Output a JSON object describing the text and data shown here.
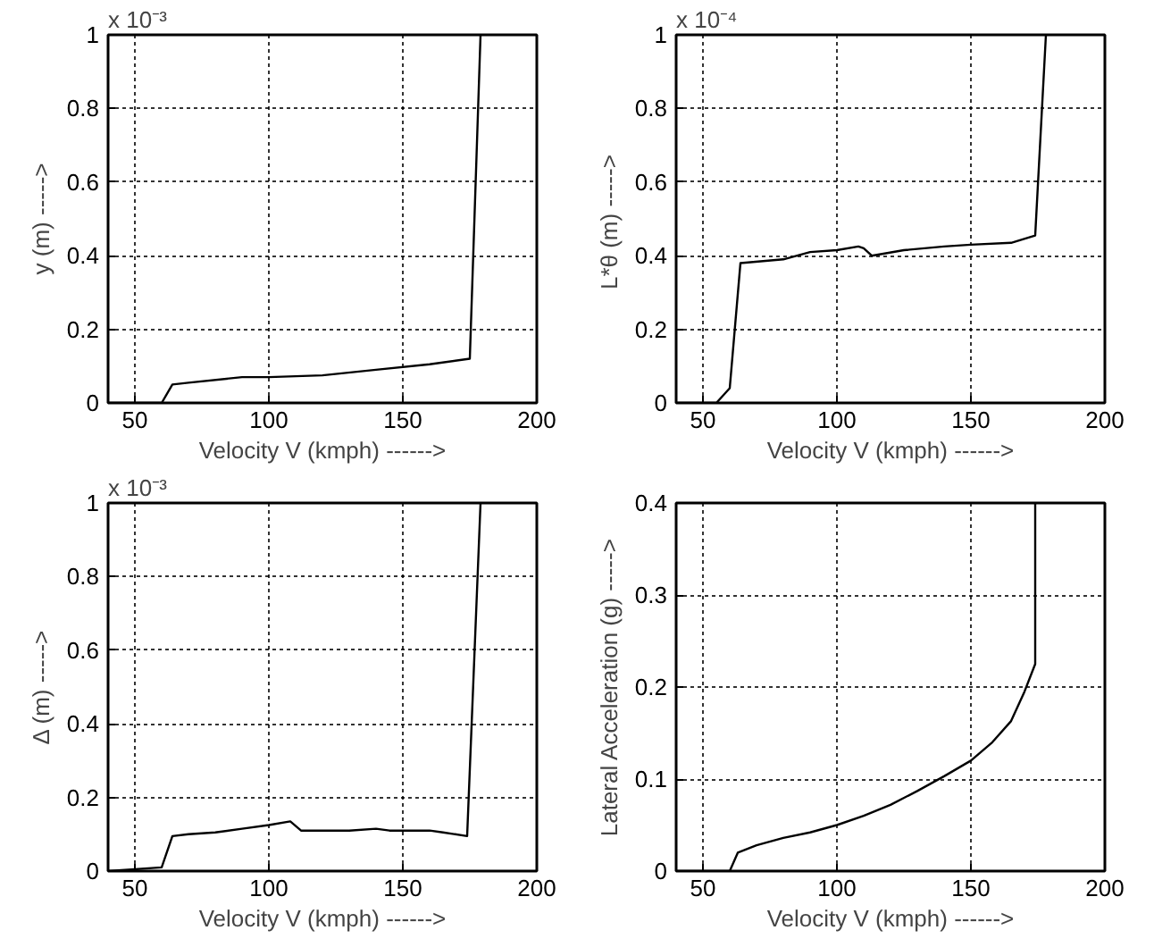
{
  "chart_data": [
    {
      "type": "line",
      "xlabel": "Velocity V (kmph) ------>",
      "ylabel": "y (m) ----->",
      "annotations": [
        "x 10⁻³"
      ],
      "xlim": [
        40,
        200
      ],
      "ylim": [
        0,
        1
      ],
      "xticks": [
        50,
        100,
        150,
        200
      ],
      "yticks": [
        0,
        0.2,
        0.4,
        0.6,
        0.8,
        1
      ],
      "grid": true,
      "series": [
        {
          "color": "#000000",
          "x": [
            40,
            60,
            64,
            70,
            90,
            100,
            120,
            140,
            160,
            175,
            179
          ],
          "values": [
            0,
            0,
            0.05,
            0.055,
            0.07,
            0.07,
            0.075,
            0.09,
            0.105,
            0.12,
            1
          ]
        }
      ]
    },
    {
      "type": "line",
      "xlabel": "Velocity V (kmph) ------>",
      "ylabel": "L*θ  (m) ----->",
      "annotations": [
        "x 10⁻⁴"
      ],
      "xlim": [
        40,
        200
      ],
      "ylim": [
        0,
        1
      ],
      "xticks": [
        50,
        100,
        150,
        200
      ],
      "yticks": [
        0,
        0.2,
        0.4,
        0.6,
        0.8,
        1
      ],
      "grid": true,
      "series": [
        {
          "color": "#000000",
          "x": [
            40,
            55,
            60,
            64,
            80,
            90,
            100,
            108,
            110,
            113,
            125,
            140,
            150,
            165,
            174,
            178
          ],
          "values": [
            0,
            0,
            0.04,
            0.38,
            0.39,
            0.41,
            0.415,
            0.425,
            0.42,
            0.4,
            0.415,
            0.425,
            0.43,
            0.435,
            0.455,
            1
          ]
        }
      ]
    },
    {
      "type": "line",
      "xlabel": "Velocity V (kmph) ------>",
      "ylabel": "Δ (m) ----->",
      "annotations": [
        "x 10⁻³"
      ],
      "xlim": [
        40,
        200
      ],
      "ylim": [
        0,
        1
      ],
      "xticks": [
        50,
        100,
        150,
        200
      ],
      "yticks": [
        0,
        0.2,
        0.4,
        0.6,
        0.8,
        1
      ],
      "grid": true,
      "series": [
        {
          "color": "#000000",
          "x": [
            40,
            60,
            64,
            70,
            80,
            90,
            100,
            108,
            112,
            130,
            140,
            145,
            160,
            165,
            174,
            179
          ],
          "values": [
            0,
            0.01,
            0.095,
            0.1,
            0.105,
            0.115,
            0.125,
            0.135,
            0.11,
            0.11,
            0.115,
            0.11,
            0.11,
            0.105,
            0.095,
            1
          ]
        }
      ]
    },
    {
      "type": "line",
      "xlabel": "Velocity V (kmph) ------>",
      "ylabel": "Lateral Acceleration (g) ----->",
      "xlim": [
        40,
        200
      ],
      "ylim": [
        0,
        0.4
      ],
      "xticks": [
        50,
        100,
        150,
        200
      ],
      "yticks": [
        0,
        0.1,
        0.2,
        0.3,
        0.4
      ],
      "grid": true,
      "series": [
        {
          "color": "#000000",
          "x": [
            40,
            60,
            63,
            70,
            80,
            90,
            100,
            110,
            120,
            130,
            140,
            150,
            158,
            165,
            170,
            174,
            174
          ],
          "values": [
            0,
            0,
            0.02,
            0.028,
            0.036,
            0.042,
            0.05,
            0.06,
            0.072,
            0.087,
            0.103,
            0.12,
            0.14,
            0.163,
            0.195,
            0.225,
            0.4
          ]
        }
      ]
    }
  ]
}
